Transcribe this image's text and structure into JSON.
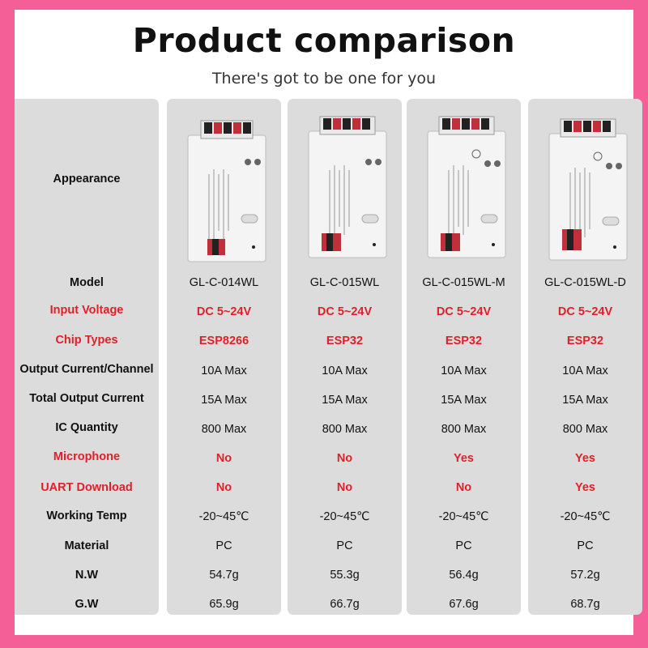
{
  "header": {
    "title": "Product comparison",
    "subtitle": "There's got to be one for you"
  },
  "rows": [
    {
      "label": "Appearance",
      "highlight": false
    },
    {
      "label": "Model",
      "highlight": false,
      "values": [
        "GL-C-014WL",
        "GL-C-015WL",
        "GL-C-015WL-M",
        "GL-C-015WL-D"
      ],
      "value_highlight": false
    },
    {
      "label": "Input Voltage",
      "highlight": true,
      "values": [
        "DC 5~24V",
        "DC 5~24V",
        "DC 5~24V",
        "DC 5~24V"
      ],
      "value_highlight": true
    },
    {
      "label": "Chip Types",
      "highlight": true,
      "values": [
        "ESP8266",
        "ESP32",
        "ESP32",
        "ESP32"
      ],
      "value_highlight": true
    },
    {
      "label": "Output Current/Channel",
      "highlight": false,
      "values": [
        "10A Max",
        "10A Max",
        "10A Max",
        "10A Max"
      ],
      "value_highlight": false
    },
    {
      "label": "Total Output Current",
      "highlight": false,
      "values": [
        "15A Max",
        "15A Max",
        "15A Max",
        "15A Max"
      ],
      "value_highlight": false
    },
    {
      "label": "IC Quantity",
      "highlight": false,
      "values": [
        "800 Max",
        "800 Max",
        "800 Max",
        "800 Max"
      ],
      "value_highlight": false
    },
    {
      "label": "Microphone",
      "highlight": true,
      "values": [
        "No",
        "No",
        "Yes",
        "Yes"
      ],
      "value_highlight": true
    },
    {
      "label": "UART Download",
      "highlight": true,
      "values": [
        "No",
        "No",
        "No",
        "Yes"
      ],
      "value_highlight": true
    },
    {
      "label": "Working Temp",
      "highlight": false,
      "values": [
        "-20~45℃",
        "-20~45℃",
        "-20~45℃",
        "-20~45℃"
      ],
      "value_highlight": false
    },
    {
      "label": "Material",
      "highlight": false,
      "values": [
        "PC",
        "PC",
        "PC",
        "PC"
      ],
      "value_highlight": false
    },
    {
      "label": "N.W",
      "highlight": false,
      "values": [
        "54.7g",
        "55.3g",
        "56.4g",
        "57.2g"
      ],
      "value_highlight": false
    },
    {
      "label": "G.W",
      "highlight": false,
      "values": [
        "65.9g",
        "66.7g",
        "67.6g",
        "68.7g"
      ],
      "value_highlight": false
    }
  ],
  "colors": {
    "border": "#f45f97",
    "column_bg": "#dcdcdc",
    "highlight": "#e0202a"
  },
  "device_images": [
    {
      "name": "controller-photo",
      "model": "GL-C-014WL"
    },
    {
      "name": "controller-photo",
      "model": "GL-C-015WL"
    },
    {
      "name": "controller-photo",
      "model": "GL-C-015WL-M"
    },
    {
      "name": "controller-photo",
      "model": "GL-C-015WL-D"
    }
  ]
}
